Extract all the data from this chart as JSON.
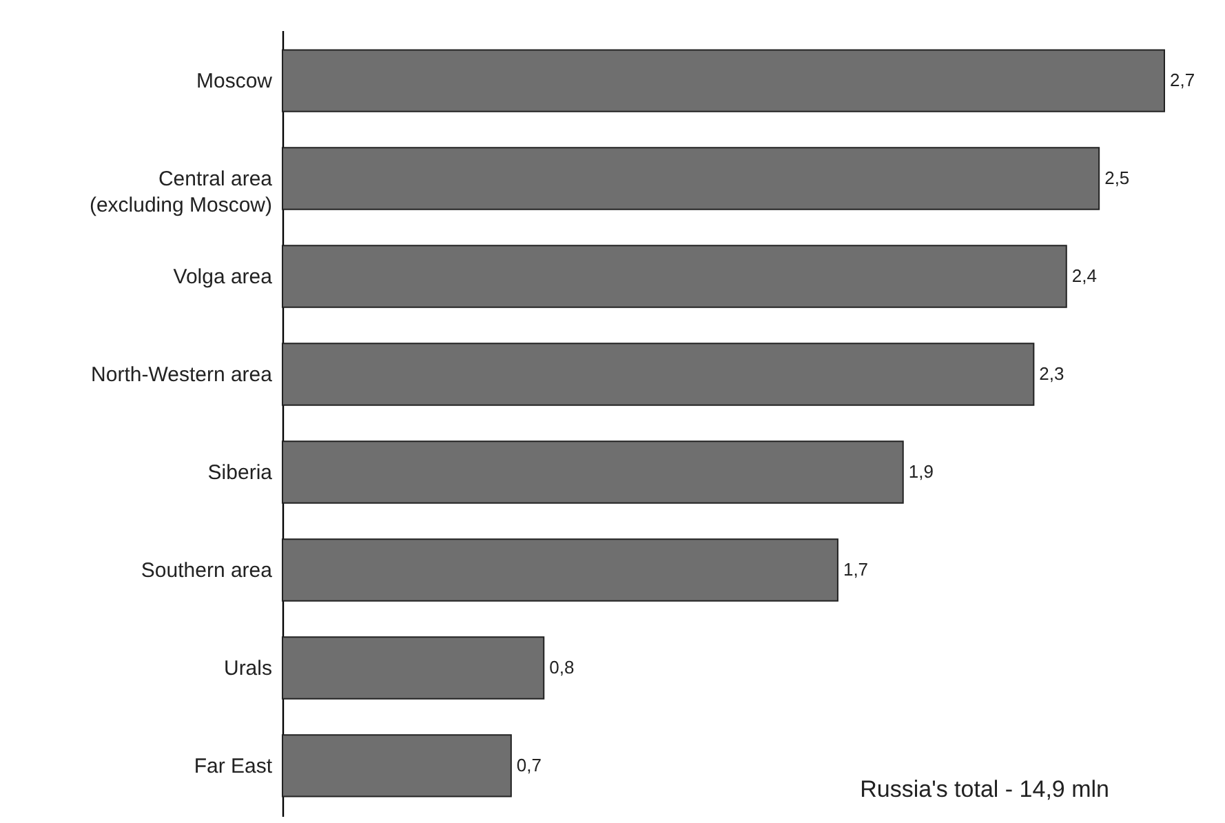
{
  "chart_data": {
    "type": "bar",
    "orientation": "horizontal",
    "categories": [
      "Moscow",
      "Central area\n(excluding Moscow)",
      "Volga area",
      "North-Western area",
      "Siberia",
      "Southern area",
      "Urals",
      "Far East"
    ],
    "values": [
      2.7,
      2.5,
      2.4,
      2.3,
      1.9,
      1.7,
      0.8,
      0.7
    ],
    "value_labels": [
      "2,7",
      "2,5",
      "2,4",
      "2,3",
      "1,9",
      "1,7",
      "0,8",
      "0,7"
    ],
    "color": "#6f6f6f",
    "grid": false,
    "annotations": [
      "Russia's total - 14,9 mln"
    ]
  }
}
